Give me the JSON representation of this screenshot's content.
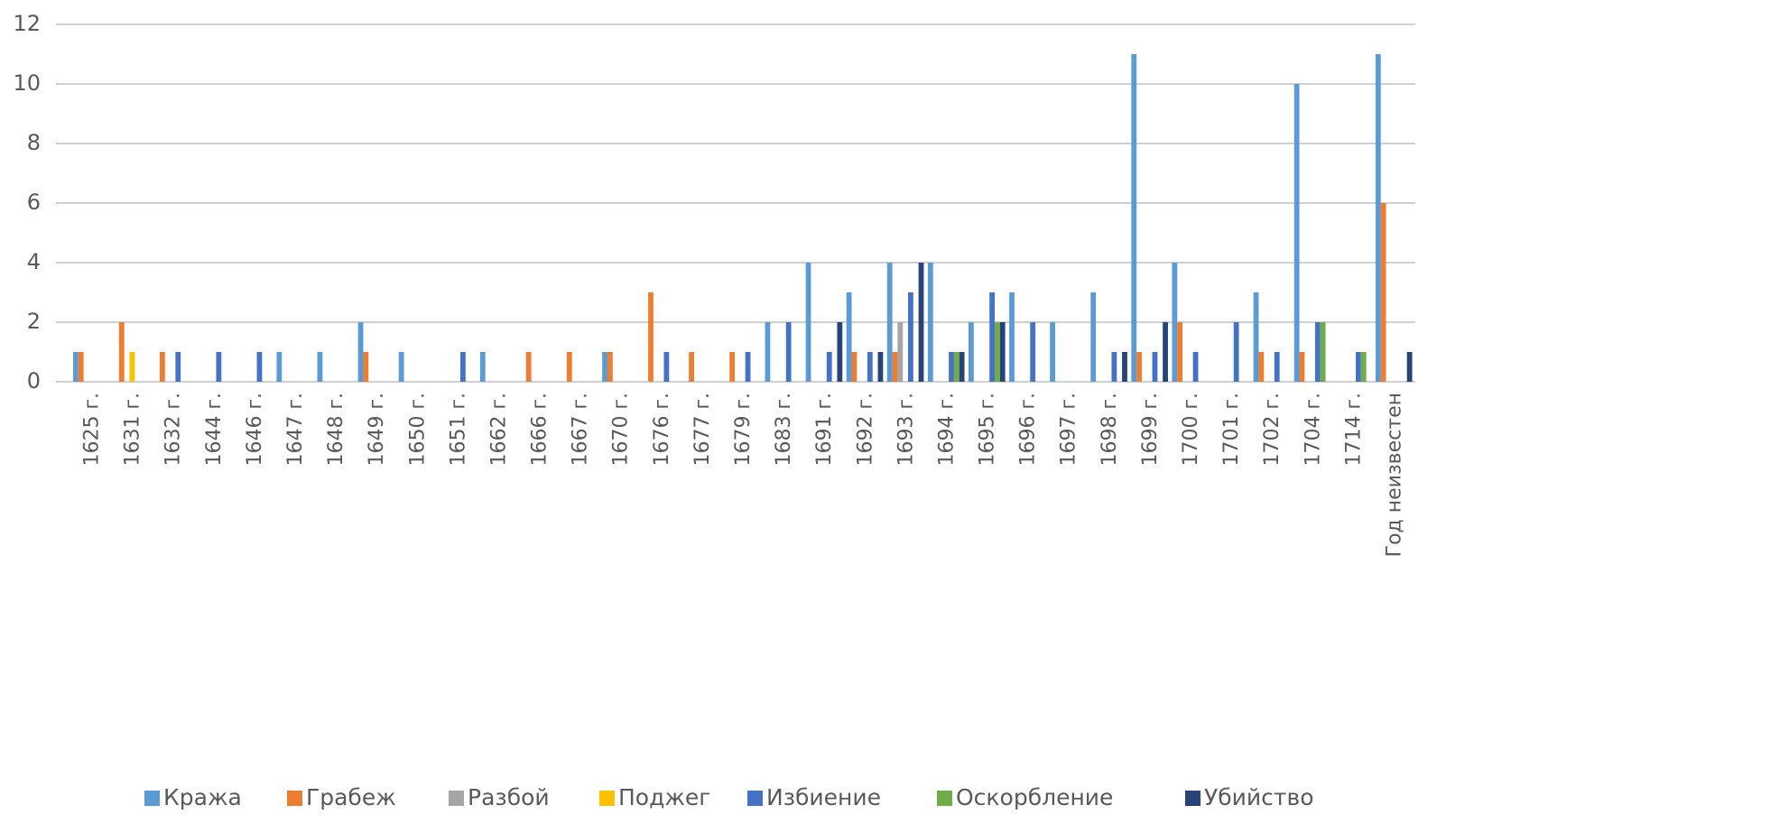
{
  "chart_data": {
    "type": "bar",
    "categories": [
      "1625 г.",
      "1631 г.",
      "1632 г.",
      "1644 г.",
      "1646 г.",
      "1647 г.",
      "1648 г.",
      "1649 г.",
      "1650 г.",
      "1651 г.",
      "1662 г.",
      "1666 г.",
      "1667 г.",
      "1670 г.",
      "1676 г.",
      "1677 г.",
      "1679 г.",
      "1683 г.",
      "1691 г.",
      "1692 г.",
      "1693 г.",
      "1694 г.",
      "1695 г.",
      "1696 г.",
      "1697 г.",
      "1698 г.",
      "1699 г.",
      "1700 г.",
      "1701 г.",
      "1702 г.",
      "1704 г.",
      "1714 г.",
      "Год неизвестен"
    ],
    "series": [
      {
        "name": "Кража",
        "color": "#5b9bd5",
        "values": [
          1,
          0,
          0,
          0,
          0,
          1,
          1,
          2,
          1,
          0,
          1,
          0,
          0,
          1,
          0,
          0,
          0,
          2,
          4,
          3,
          4,
          4,
          2,
          3,
          2,
          3,
          11,
          4,
          0,
          3,
          10,
          0,
          11
        ]
      },
      {
        "name": "Грабеж",
        "color": "#ed7d31",
        "values": [
          1,
          2,
          1,
          0,
          0,
          0,
          0,
          1,
          0,
          0,
          0,
          1,
          1,
          1,
          3,
          1,
          1,
          0,
          0,
          1,
          1,
          0,
          0,
          0,
          0,
          0,
          1,
          2,
          0,
          1,
          1,
          0,
          6
        ]
      },
      {
        "name": "Разбой",
        "color": "#a5a5a5",
        "values": [
          0,
          0,
          0,
          0,
          0,
          0,
          0,
          0,
          0,
          0,
          0,
          0,
          0,
          0,
          0,
          0,
          0,
          0,
          0,
          0,
          2,
          0,
          0,
          0,
          0,
          0,
          0,
          0,
          0,
          0,
          0,
          0,
          0
        ]
      },
      {
        "name": "Поджег",
        "color": "#ffc000",
        "values": [
          0,
          1,
          0,
          0,
          0,
          0,
          0,
          0,
          0,
          0,
          0,
          0,
          0,
          0,
          0,
          0,
          0,
          0,
          0,
          0,
          0,
          0,
          0,
          0,
          0,
          0,
          0,
          0,
          0,
          0,
          0,
          0,
          0
        ]
      },
      {
        "name": "Избиение",
        "color": "#4472c4",
        "values": [
          0,
          0,
          1,
          1,
          1,
          0,
          0,
          0,
          0,
          1,
          0,
          0,
          0,
          0,
          1,
          0,
          1,
          2,
          1,
          1,
          3,
          1,
          3,
          2,
          0,
          1,
          1,
          1,
          2,
          1,
          2,
          1,
          0
        ]
      },
      {
        "name": "Оскорбление",
        "color": "#70ad47",
        "values": [
          0,
          0,
          0,
          0,
          0,
          0,
          0,
          0,
          0,
          0,
          0,
          0,
          0,
          0,
          0,
          0,
          0,
          0,
          0,
          0,
          0,
          1,
          2,
          0,
          0,
          0,
          0,
          0,
          0,
          0,
          2,
          1,
          0
        ]
      },
      {
        "name": "Убийство",
        "color": "#264478",
        "values": [
          0,
          0,
          0,
          0,
          0,
          0,
          0,
          0,
          0,
          0,
          0,
          0,
          0,
          0,
          0,
          0,
          0,
          0,
          2,
          1,
          4,
          1,
          2,
          0,
          0,
          1,
          2,
          0,
          0,
          0,
          0,
          0,
          1
        ]
      }
    ],
    "ylim": [
      0,
      12
    ],
    "yticks": [
      0,
      2,
      4,
      6,
      8,
      10,
      12
    ],
    "grid": true,
    "legend": "bottom"
  }
}
